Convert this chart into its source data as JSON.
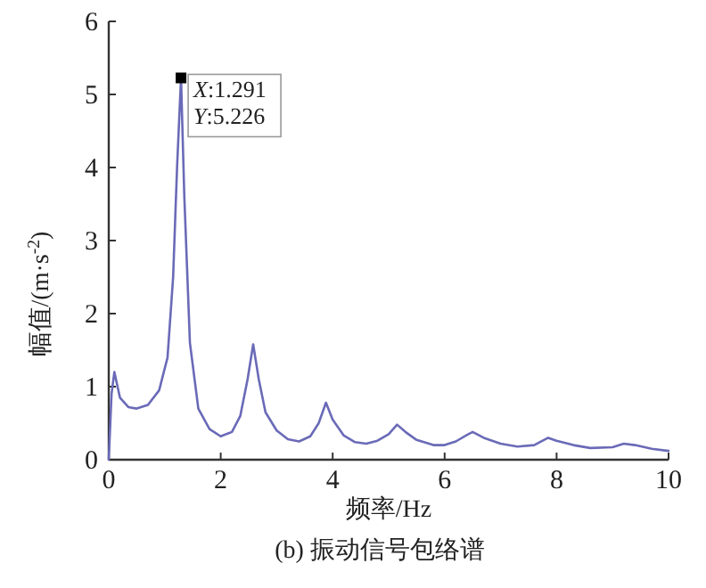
{
  "chart_data": {
    "type": "line",
    "title": "(b) 振动信号包络谱",
    "xlabel": "频率/Hz",
    "ylabel": "幅值/(m·s$^{-2}$)",
    "xlim": [
      0,
      10
    ],
    "ylim": [
      0,
      6
    ],
    "xticks": [
      0,
      2,
      4,
      6,
      8,
      10
    ],
    "yticks": [
      0,
      1,
      2,
      3,
      4,
      5,
      6
    ],
    "series": [
      {
        "color": "#6a6ab8",
        "x": [
          0,
          0.05,
          0.1,
          0.2,
          0.35,
          0.5,
          0.7,
          0.9,
          1.05,
          1.15,
          1.22,
          1.291,
          1.35,
          1.45,
          1.6,
          1.8,
          2.0,
          2.2,
          2.35,
          2.48,
          2.58,
          2.68,
          2.8,
          3.0,
          3.2,
          3.4,
          3.6,
          3.75,
          3.88,
          4.0,
          4.2,
          4.4,
          4.6,
          4.8,
          5.0,
          5.15,
          5.3,
          5.5,
          5.8,
          6.0,
          6.2,
          6.4,
          6.5,
          6.7,
          7.0,
          7.3,
          7.6,
          7.75,
          7.85,
          8.0,
          8.3,
          8.6,
          9.0,
          9.2,
          9.4,
          9.7,
          10
        ],
        "values": [
          0,
          0.9,
          1.2,
          0.85,
          0.72,
          0.7,
          0.75,
          0.95,
          1.4,
          2.5,
          4.0,
          5.226,
          3.6,
          1.6,
          0.7,
          0.42,
          0.32,
          0.38,
          0.6,
          1.1,
          1.58,
          1.1,
          0.65,
          0.4,
          0.28,
          0.25,
          0.32,
          0.5,
          0.78,
          0.55,
          0.33,
          0.24,
          0.22,
          0.26,
          0.35,
          0.48,
          0.38,
          0.27,
          0.2,
          0.2,
          0.25,
          0.34,
          0.38,
          0.3,
          0.22,
          0.18,
          0.2,
          0.26,
          0.3,
          0.26,
          0.2,
          0.16,
          0.17,
          0.22,
          0.2,
          0.15,
          0.12
        ]
      }
    ],
    "annotations": [
      {
        "text": "*X*:1.291",
        "x": 1.291,
        "y": 5.226
      },
      {
        "text": "*Y*:5.226",
        "x": 1.291,
        "y": 5.226
      }
    ]
  }
}
